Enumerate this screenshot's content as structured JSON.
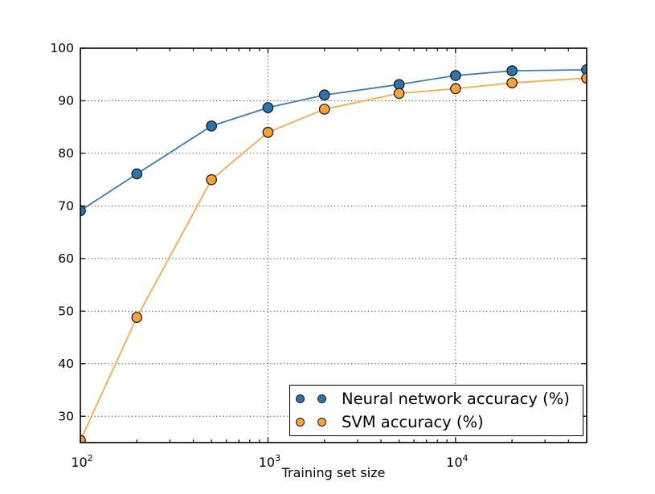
{
  "chart_data": {
    "type": "line",
    "title": "",
    "xlabel": "Training set size",
    "ylabel": "",
    "x_scale": "log",
    "xlim": [
      100,
      50000
    ],
    "ylim": [
      25,
      100
    ],
    "grid": true,
    "grid_style": "dotted",
    "legend_position": "lower right",
    "x_major_ticks": [
      {
        "value": 100,
        "label_base": "10",
        "label_exp": "2"
      },
      {
        "value": 1000,
        "label_base": "10",
        "label_exp": "3"
      },
      {
        "value": 10000,
        "label_base": "10",
        "label_exp": "4"
      }
    ],
    "y_ticks": [
      30,
      40,
      50,
      60,
      70,
      80,
      90,
      100
    ],
    "x": [
      100,
      200,
      500,
      1000,
      2000,
      5000,
      10000,
      20000,
      50000
    ],
    "series": [
      {
        "name": "Neural network accuracy (%)",
        "color": "#2e73a9",
        "line_color": "#3c7db3",
        "edge_color": "#1c1c1c",
        "values": [
          69.1,
          76.1,
          85.2,
          88.7,
          91.1,
          93.1,
          94.8,
          95.7,
          95.9
        ]
      },
      {
        "name": "SVM accuracy (%)",
        "color": "#f7a23c",
        "line_color": "#f9a94a",
        "edge_color": "#1c1c1c",
        "values": [
          25.4,
          48.8,
          75.0,
          84.0,
          88.4,
          91.4,
          92.3,
          93.4,
          94.3
        ]
      }
    ]
  }
}
